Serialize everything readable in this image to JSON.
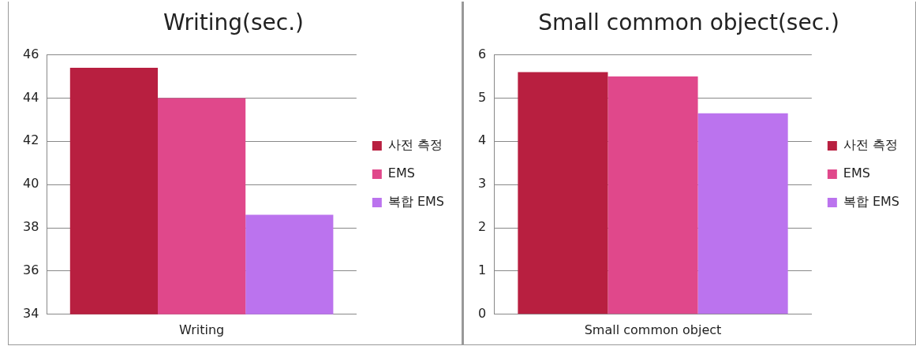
{
  "chart_data": [
    {
      "type": "bar",
      "title": "Writing(sec.)",
      "categories": [
        "Writing"
      ],
      "series": [
        {
          "name": "사전 측정",
          "color": "#b81f40",
          "values": [
            45.4
          ]
        },
        {
          "name": "EMS",
          "color": "#e0488b",
          "values": [
            44
          ]
        },
        {
          "name": "복합 EMS",
          "color": "#bb73ee",
          "values": [
            38.6
          ]
        }
      ],
      "ylim": [
        34,
        46
      ],
      "yticks": [
        34,
        36,
        38,
        40,
        42,
        44,
        46
      ],
      "grid": "y",
      "legend": "right"
    },
    {
      "type": "bar",
      "title": "Small common object(sec.)",
      "categories": [
        "Small common object"
      ],
      "series": [
        {
          "name": "사전 측정",
          "color": "#b81f40",
          "values": [
            5.6
          ]
        },
        {
          "name": "EMS",
          "color": "#e0488b",
          "values": [
            5.5
          ]
        },
        {
          "name": "복합 EMS",
          "color": "#bb73ee",
          "values": [
            4.65
          ]
        }
      ],
      "ylim": [
        0,
        6
      ],
      "yticks": [
        0,
        1,
        2,
        3,
        4,
        5,
        6
      ],
      "grid": "y",
      "legend": "right"
    }
  ]
}
